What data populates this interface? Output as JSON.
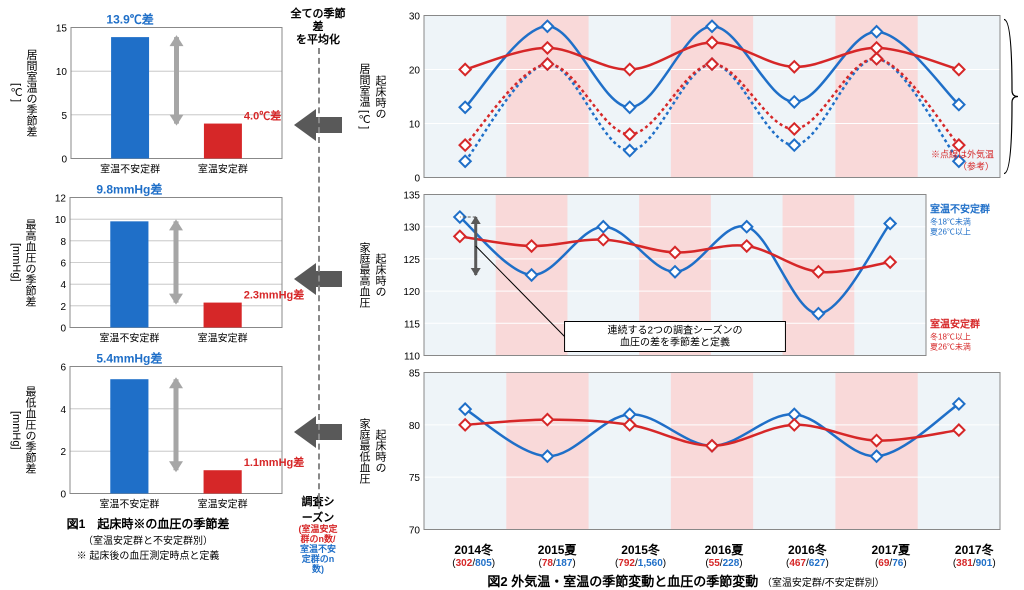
{
  "colors": {
    "blue": "#1f6fc8",
    "red": "#d62728",
    "blue_fill": "#1f6fc8",
    "red_fill": "#d62728",
    "plot_bg": "#eef4f8",
    "season_band": "#f9d9d9",
    "grid": "#bfbfbf",
    "arrow_gray": "#595959",
    "light_gray_arrow": "#a6a6a6"
  },
  "seasons": [
    "2014冬",
    "2015夏",
    "2015冬",
    "2016夏",
    "2016冬",
    "2017夏",
    "2017冬"
  ],
  "n_counts": [
    {
      "stable": 302,
      "unstable": 805
    },
    {
      "stable": 78,
      "unstable": 187
    },
    {
      "stable": 792,
      "unstable": 1560
    },
    {
      "stable": 55,
      "unstable": 228
    },
    {
      "stable": 467,
      "unstable": 627
    },
    {
      "stable": 69,
      "unstable": 76
    },
    {
      "stable": 381,
      "unstable": 901
    }
  ],
  "left": {
    "bar1": {
      "ylabel_a": "居間室温の季節差",
      "ylabel_b": "[℃]",
      "diff_label": "13.9℃差",
      "diff_label2": "4.0℃差",
      "ymax": 15,
      "ytick": 5,
      "val_unstable": 13.9,
      "val_stable": 4.0,
      "xlabels": [
        "室温不安定群",
        "室温安定群"
      ]
    },
    "bar2": {
      "ylabel_a": "最高血圧の季節差",
      "ylabel_b": "[mmHg]",
      "diff_label": "9.8mmHg差",
      "diff_label2": "2.3mmHg差",
      "ymax": 12,
      "ytick": 2,
      "val_unstable": 9.8,
      "val_stable": 2.3,
      "xlabels": [
        "室温不安定群",
        "室温安定群"
      ]
    },
    "bar3": {
      "ylabel_a": "最低血圧の季節差",
      "ylabel_b": "[mmHg]",
      "diff_label": "5.4mmHg差",
      "diff_label2": "1.1mmHg差",
      "ymax": 6,
      "ytick": 2,
      "val_unstable": 5.4,
      "val_stable": 1.1,
      "xlabels": [
        "室温不安定群",
        "室温安定群"
      ]
    },
    "caption": "図1　起床時※の血圧の季節差",
    "caption_sub1": "（室温安定群と不安定群別）",
    "caption_sub2": "※ 起床後の血圧測定時点と定義"
  },
  "mid": {
    "avg_label_a": "全ての季節差",
    "avg_label_b": "を平均化",
    "survey_label": "調査シーズン",
    "survey_sub_a": "(室温安定群のn数/",
    "survey_sub_b": "室温不安定群のn数)"
  },
  "right": {
    "chart1": {
      "ylabel_a": "起床時の",
      "ylabel_b": "居間室温 [℃]",
      "ymin": 0,
      "ymax": 30,
      "ytick": 10,
      "unstable": [
        13,
        28,
        13,
        28,
        14,
        27,
        13.5
      ],
      "stable": [
        20,
        24,
        20,
        25,
        20.5,
        24,
        20
      ],
      "outdoor_unstable": [
        3,
        21,
        5,
        21,
        6,
        22,
        3
      ],
      "outdoor_stable": [
        6,
        21,
        8,
        21,
        9,
        22,
        6
      ],
      "note_a": "※点線は外気温",
      "note_b": "（参考）"
    },
    "chart2": {
      "ylabel_a": "起床時の",
      "ylabel_b": "家庭最高血圧",
      "ymin": 110,
      "ymax": 135,
      "ytick": 5,
      "unstable": [
        131.5,
        122.5,
        130,
        123,
        130,
        116.5,
        130.5
      ],
      "stable": [
        128.5,
        127,
        128,
        126,
        127,
        123,
        124.5
      ],
      "legend_unstable_a": "室温不安定群",
      "legend_unstable_b": "冬18℃未満",
      "legend_unstable_c": "夏26℃以上",
      "legend_stable_a": "室温安定群",
      "legend_stable_b": "冬18℃以上",
      "legend_stable_c": "夏26℃未満",
      "box_a": "連続する2つの調査シーズンの",
      "box_b": "血圧の差を季節差と定義"
    },
    "chart3": {
      "ylabel_a": "起床時の",
      "ylabel_b": "家庭最低血圧",
      "ymin": 70,
      "ymax": 85,
      "ytick": 5,
      "unstable": [
        81.5,
        77,
        81,
        78,
        81,
        77,
        82
      ],
      "stable": [
        80,
        80.5,
        80,
        78,
        80,
        78.5,
        79.5
      ]
    },
    "caption": "図2 外気温・室温の季節変動と血圧の季節変動",
    "caption_sub": "（室温安定群/不安定群別）"
  }
}
